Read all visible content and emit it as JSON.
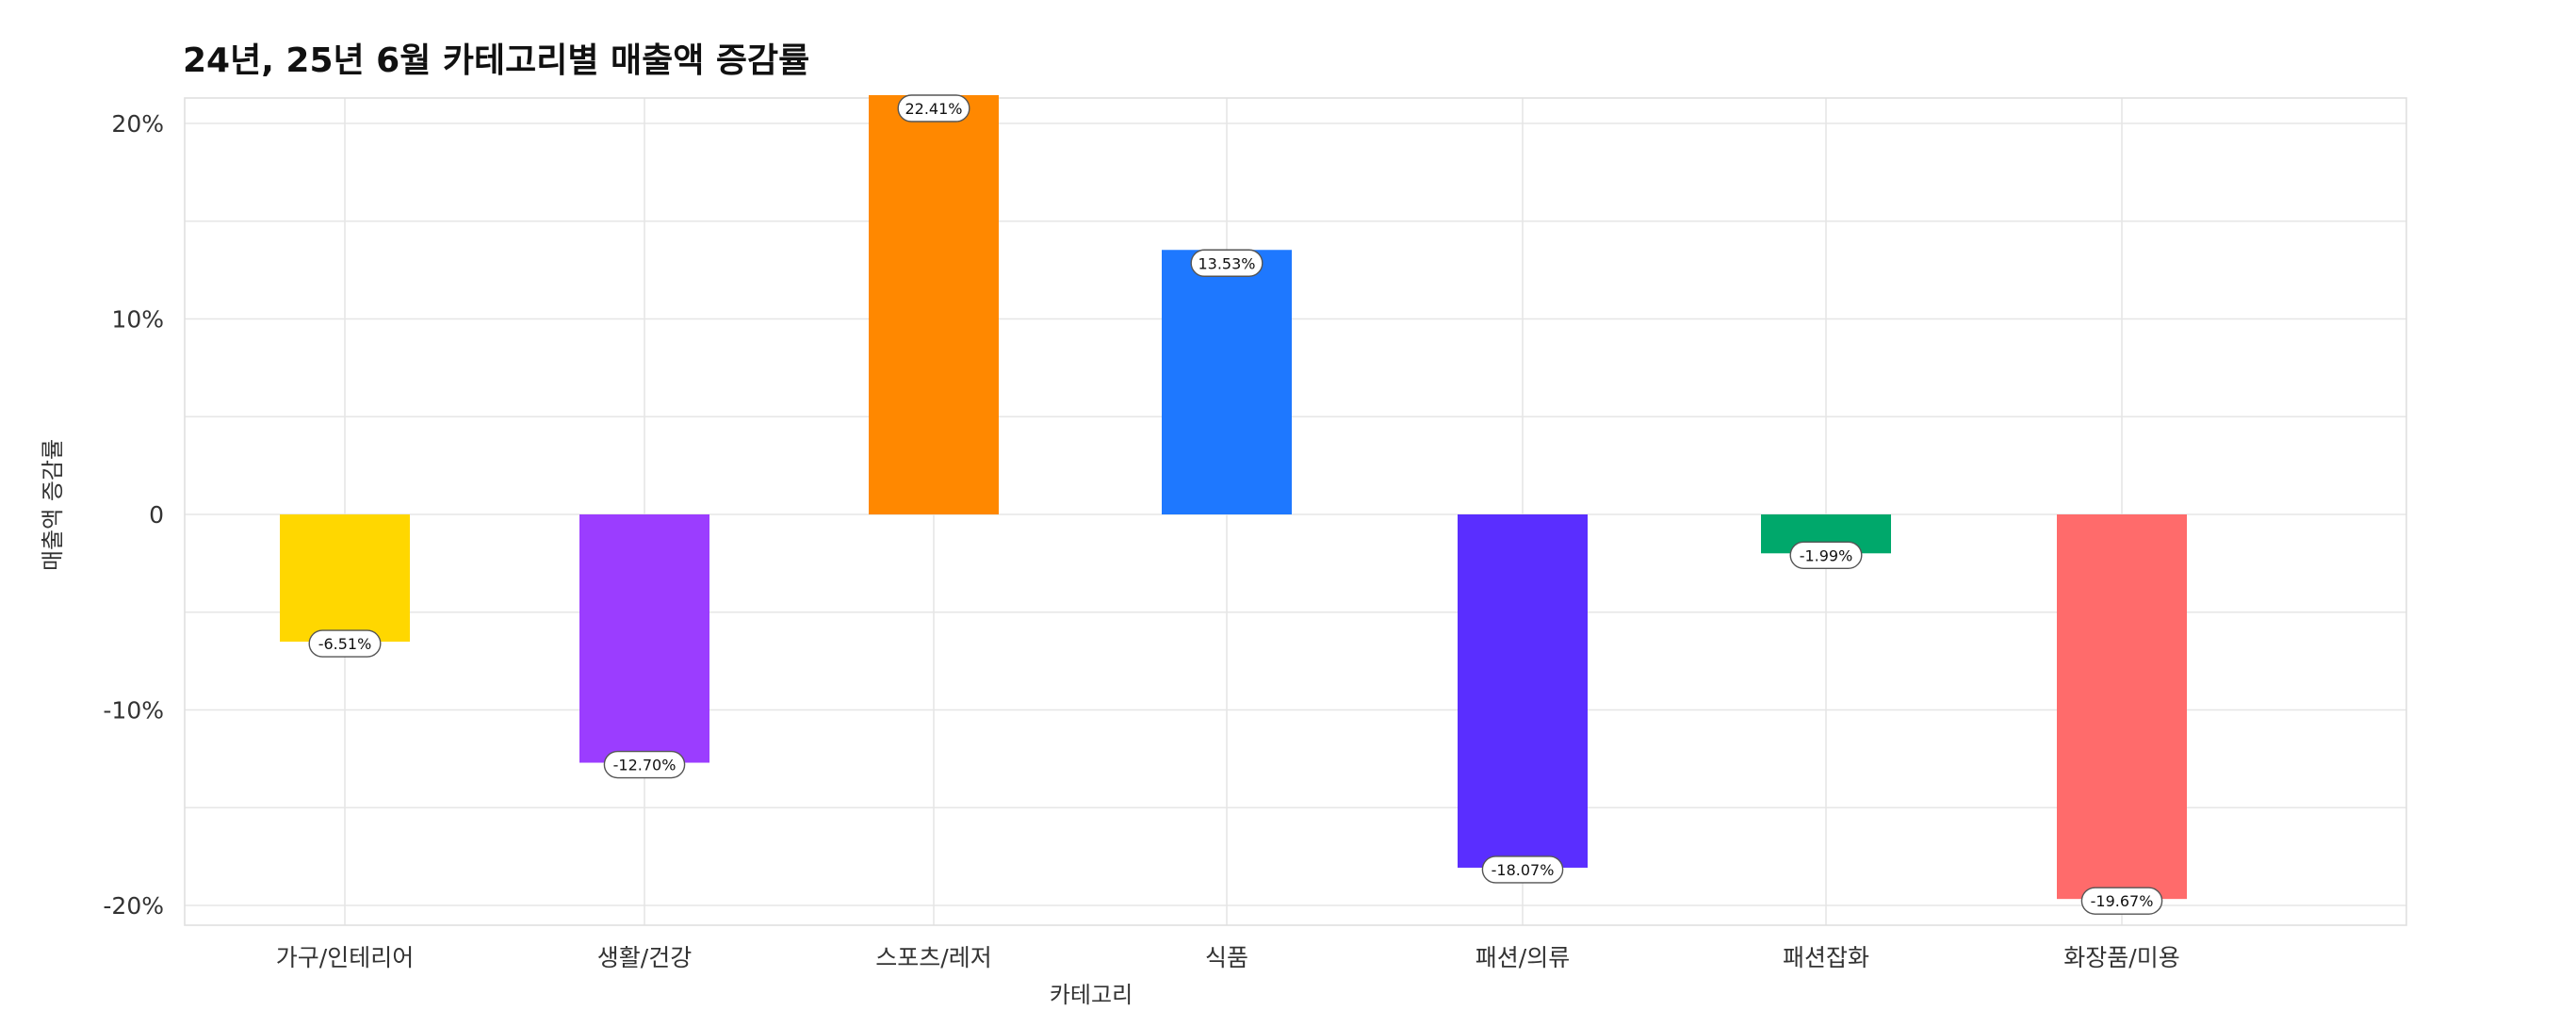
{
  "chart_data": {
    "type": "bar",
    "title": "24년, 25년 6월 카테고리별 매출액 증감률",
    "xlabel": "카테고리",
    "ylabel": "매출액 증감률",
    "categories": [
      "가구/인테리어",
      "생활/건강",
      "스포츠/레저",
      "식품",
      "패션/의류",
      "패션잡화",
      "화장품/미용"
    ],
    "values": [
      -6.51,
      -12.7,
      22.41,
      13.53,
      -18.07,
      -1.99,
      -19.67
    ],
    "data_labels": [
      "-6.51%",
      "-12.70%",
      "22.41%",
      "13.53%",
      "-18.07%",
      "-1.99%",
      "-19.67%"
    ],
    "colors": [
      "#FFD700",
      "#9B3DFF",
      "#FF8800",
      "#1E78FF",
      "#5A2EFF",
      "#00A86B",
      "#FF6B6B"
    ],
    "yticks": [
      20,
      10,
      0,
      -10,
      -20
    ],
    "ytick_labels": [
      "20%",
      "10%",
      "0",
      "-10%",
      "-20%"
    ],
    "ylim": [
      -21,
      21
    ],
    "grid": true,
    "legend": "none"
  }
}
